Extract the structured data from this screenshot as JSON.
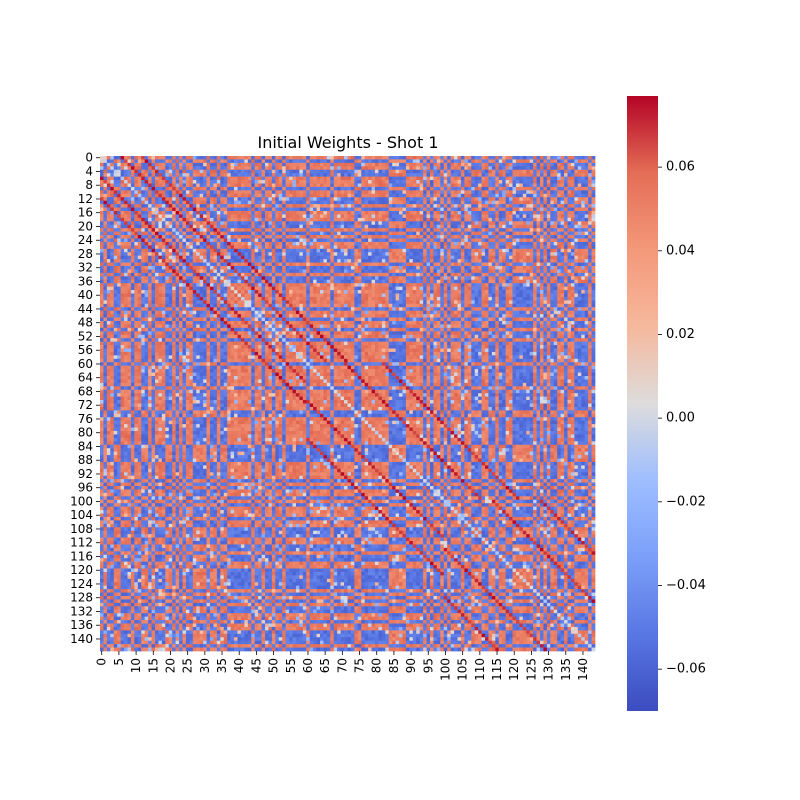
{
  "chart_data": {
    "type": "heatmap",
    "title": "Initial Weights - Shot 1",
    "n_rows": 144,
    "n_cols": 144,
    "x_tick_labels": [
      "0",
      "5",
      "10",
      "15",
      "20",
      "25",
      "30",
      "35",
      "40",
      "45",
      "50",
      "55",
      "60",
      "65",
      "70",
      "75",
      "80",
      "85",
      "90",
      "95",
      "100",
      "105",
      "110",
      "115",
      "120",
      "125",
      "130",
      "135",
      "140"
    ],
    "y_tick_labels": [
      "0",
      "4",
      "8",
      "12",
      "16",
      "20",
      "24",
      "28",
      "32",
      "36",
      "40",
      "44",
      "48",
      "52",
      "56",
      "60",
      "64",
      "68",
      "72",
      "76",
      "80",
      "84",
      "88",
      "92",
      "96",
      "100",
      "104",
      "108",
      "112",
      "116",
      "120",
      "124",
      "128",
      "132",
      "136",
      "140"
    ],
    "colormap": "coolwarm",
    "value_range": [
      -0.07,
      0.077
    ],
    "colorbar_ticks": [
      "0.06",
      "0.04",
      "0.02",
      "0.00",
      "−0.02",
      "−0.04",
      "−0.06"
    ],
    "colorbar_tick_values": [
      0.06,
      0.04,
      0.02,
      0.0,
      -0.02,
      -0.04,
      -0.06
    ],
    "pattern": "checkerboard-like alternating weights near ±0.055 with strong positive (~0.07) off-diagonal bands and near-zero values along the main diagonal"
  }
}
